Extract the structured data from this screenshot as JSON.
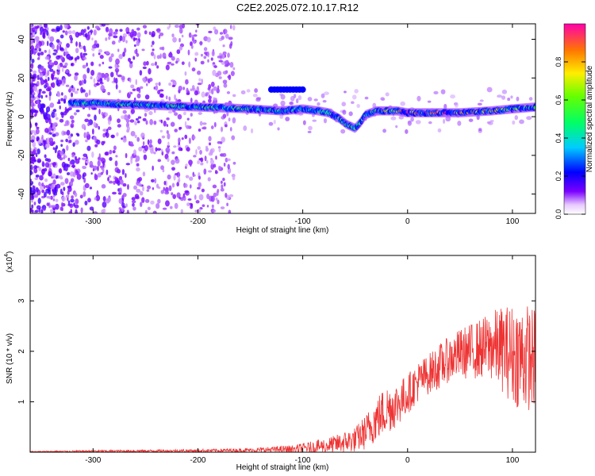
{
  "title": "C2E2.2025.072.10.17.R12",
  "chart_data": [
    {
      "type": "heatmap",
      "xlabel": "Height of straight line (km)",
      "ylabel": "Frequency (Hz)",
      "xlim": [
        -360,
        122
      ],
      "ylim": [
        -50,
        48
      ],
      "xticks": [
        -300,
        -200,
        -100,
        0,
        100
      ],
      "yticks": [
        -40,
        -20,
        0,
        20,
        40
      ],
      "colorbar": {
        "label": "Normalized spectral amplitude",
        "range": [
          0,
          1
        ],
        "ticks": [
          0.0,
          0.2,
          0.4,
          0.6,
          0.8
        ],
        "tick_labels": [
          "0.0",
          "0.2",
          "0.4",
          "0.6",
          "0.8"
        ],
        "colormap": "rainbow"
      },
      "trace": {
        "x": [
          -320,
          -300,
          -250,
          -200,
          -150,
          -120,
          -100,
          -85,
          -75,
          -65,
          -58,
          -50,
          -45,
          -40,
          -35,
          -30,
          -20,
          -10,
          0,
          20,
          50,
          80,
          100,
          122
        ],
        "freq": [
          7,
          7,
          6,
          5,
          4,
          3,
          4,
          3,
          2,
          -1,
          -4,
          -6,
          -3,
          1,
          2,
          3,
          3,
          3,
          2,
          2,
          2,
          3,
          4,
          5
        ],
        "amplitude": [
          0.45,
          0.5,
          0.55,
          0.5,
          0.55,
          0.5,
          0.45,
          0.45,
          0.5,
          0.5,
          0.55,
          0.5,
          0.45,
          0.5,
          0.55,
          0.6,
          0.7,
          0.85,
          0.95,
          0.95,
          0.9,
          0.75,
          0.65,
          0.5
        ]
      },
      "noise_region_x": [
        -360,
        -165
      ]
    },
    {
      "type": "line",
      "xlabel": "Height of straight line (km)",
      "ylabel": "SNR (10 * v/v)",
      "y_scale_label": "(x10",
      "y_scale_exponent": "4",
      "xlim": [
        -360,
        122
      ],
      "ylim": [
        0,
        3.9
      ],
      "xticks": [
        -300,
        -200,
        -100,
        0,
        100
      ],
      "yticks": [
        1,
        2,
        3
      ],
      "line_color": "#ee3333",
      "envelope": {
        "x": [
          -360,
          -300,
          -200,
          -150,
          -110,
          -90,
          -70,
          -50,
          -40,
          -30,
          -20,
          -10,
          0,
          10,
          20,
          30,
          40,
          50,
          60,
          70,
          80,
          90,
          100,
          110,
          122
        ],
        "mean": [
          0.01,
          0.02,
          0.03,
          0.04,
          0.06,
          0.1,
          0.15,
          0.25,
          0.4,
          0.65,
          0.85,
          0.95,
          1.15,
          1.4,
          1.55,
          1.7,
          1.85,
          1.95,
          2.0,
          2.05,
          2.1,
          2.05,
          1.95,
          1.9,
          1.85
        ],
        "spread": [
          0.01,
          0.02,
          0.03,
          0.04,
          0.08,
          0.12,
          0.18,
          0.25,
          0.35,
          0.45,
          0.5,
          0.45,
          0.4,
          0.4,
          0.4,
          0.45,
          0.45,
          0.5,
          0.55,
          0.6,
          0.7,
          0.85,
          1.0,
          1.1,
          1.0
        ]
      }
    }
  ]
}
